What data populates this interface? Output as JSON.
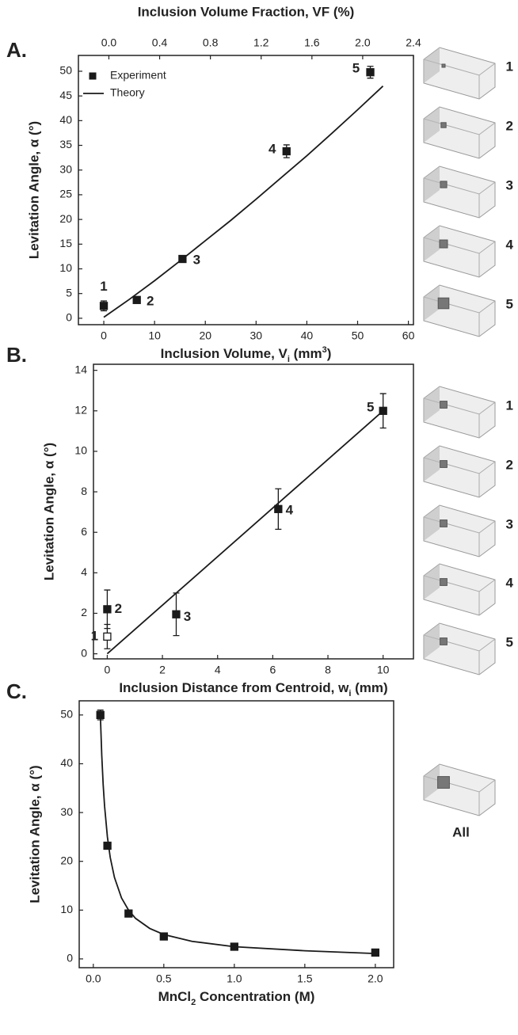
{
  "chart_data": [
    {
      "type": "scatter",
      "panel": "A.",
      "x_label": [
        "Inclusion Volume, V",
        "i",
        " (mm",
        "3",
        ")"
      ],
      "y_label": "Levitation Angle, α (°)",
      "x2_label": "Inclusion Volume Fraction, VF (%)",
      "xlim": [
        -5,
        61
      ],
      "xticks": [
        0,
        10,
        20,
        30,
        40,
        50,
        60
      ],
      "x2lim": [
        -0.24,
        2.4
      ],
      "x2ticks": [
        {
          "value": 0,
          "label": "0.0"
        },
        {
          "value": 0.4,
          "label": "0.4"
        },
        {
          "value": 0.8,
          "label": "0.8"
        },
        {
          "value": 1.2,
          "label": "1.2"
        },
        {
          "value": 1.6,
          "label": "1.6"
        },
        {
          "value": 2.0,
          "label": "2.0"
        },
        {
          "value": 2.4,
          "label": "2.4"
        }
      ],
      "ylim": [
        -1.3,
        53.2
      ],
      "yticks": [
        0,
        5,
        10,
        15,
        20,
        25,
        30,
        35,
        40,
        45,
        50
      ],
      "legend": "upper left",
      "series": [
        {
          "name": "Experiment",
          "color": "#1a1a1a",
          "x": [
            0,
            6.5,
            15.5,
            36,
            52.5
          ],
          "values": [
            2.5,
            3.7,
            12,
            33.8,
            49.8
          ],
          "errors": [
            1,
            0.3,
            0.7,
            1.3,
            1.2
          ],
          "point_labels": [
            "1",
            "2",
            "3",
            "4",
            "5"
          ]
        },
        {
          "name": "Theory",
          "type": "line",
          "color": "#1a1a1a",
          "x": [
            0,
            5,
            10,
            15,
            20,
            25,
            30,
            35,
            40,
            45,
            50,
            55
          ],
          "values": [
            0.2,
            3.8,
            7.6,
            11.6,
            15.7,
            19.8,
            24.1,
            28.5,
            32.9,
            37.5,
            42.2,
            47
          ]
        }
      ],
      "side_labels": [
        "1",
        "2",
        "3",
        "4",
        "5"
      ]
    },
    {
      "type": "scatter",
      "panel": "B.",
      "x_label": [
        "Inclusion Distance from Centroid, w",
        "i",
        " (mm)"
      ],
      "y_label": "Levitation Angle, α (°)",
      "xlim": [
        -0.5,
        11.1
      ],
      "xticks": [
        0,
        2,
        4,
        6,
        8,
        10
      ],
      "ylim": [
        -0.25,
        14.3
      ],
      "yticks": [
        0,
        2,
        4,
        6,
        8,
        10,
        12,
        14
      ],
      "series": [
        {
          "color": "#1a1a1a",
          "x": [
            0,
            0,
            2.5,
            6.2,
            10
          ],
          "values": [
            0.85,
            2.2,
            1.95,
            7.15,
            12
          ],
          "errors": [
            0.6,
            0.95,
            1.05,
            1.0,
            0.85
          ],
          "open_markers": [
            true,
            false,
            false,
            false,
            false
          ],
          "point_labels": [
            "1",
            "2",
            "3",
            "4",
            "5"
          ]
        },
        {
          "type": "line",
          "color": "#1a1a1a",
          "x": [
            0,
            10
          ],
          "values": [
            0,
            12
          ]
        }
      ],
      "side_labels": [
        "1",
        "2",
        "3",
        "4",
        "5"
      ]
    },
    {
      "type": "scatter",
      "panel": "C.",
      "x_label": [
        "MnCl",
        "2",
        " Concentration (M)"
      ],
      "y_label": "Levitation Angle, α (°)",
      "xlim": [
        -0.1,
        2.13
      ],
      "xticks": [
        {
          "value": 0,
          "label": "0.0"
        },
        {
          "value": 0.5,
          "label": "0.5"
        },
        {
          "value": 1,
          "label": "1.0"
        },
        {
          "value": 1.5,
          "label": "1.5"
        },
        {
          "value": 2,
          "label": "2.0"
        }
      ],
      "ylim": [
        -1.8,
        52.9
      ],
      "yticks": [
        0,
        10,
        20,
        30,
        40,
        50
      ],
      "series": [
        {
          "color": "#1a1a1a",
          "x": [
            0.05,
            0.1,
            0.25,
            0.5,
            1.0,
            2.0
          ],
          "values": [
            50,
            23.2,
            9.3,
            4.6,
            2.5,
            1.3
          ],
          "errors": [
            1,
            0.4,
            0.3,
            0.2,
            0.2,
            0.2
          ]
        },
        {
          "type": "line",
          "color": "#1a1a1a",
          "x": [
            0.05,
            0.06,
            0.07,
            0.08,
            0.1,
            0.12,
            0.15,
            0.2,
            0.25,
            0.3,
            0.4,
            0.5,
            0.7,
            1.0,
            1.5,
            2.0
          ],
          "values": [
            50,
            41.7,
            35.7,
            31.3,
            25,
            20.8,
            16.7,
            12.5,
            10,
            8.3,
            6.25,
            5,
            3.6,
            2.5,
            1.67,
            1.1
          ]
        }
      ],
      "side_labels": [
        "All"
      ]
    }
  ]
}
